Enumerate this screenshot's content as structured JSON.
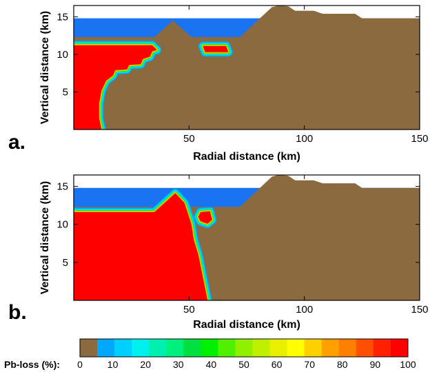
{
  "chart_data": [
    {
      "type": "heatmap",
      "panel_label": "a.",
      "xlabel": "Radial distance (km)",
      "ylabel": "Vertical distance (km)",
      "xlim": [
        0,
        150
      ],
      "ylim": [
        0,
        16.5
      ],
      "xticks": [
        50,
        100,
        150
      ],
      "yticks": [
        5,
        10,
        15
      ],
      "grid": false,
      "water": {
        "surface": 14.8,
        "color": "#1a73f0"
      },
      "rock": {
        "color": "#8b6a40",
        "profile": [
          [
            0,
            12.3
          ],
          [
            35,
            12.3
          ],
          [
            43,
            14.5
          ],
          [
            51,
            12.3
          ],
          [
            72,
            12.3
          ],
          [
            86,
            16.3
          ],
          [
            89,
            16.5
          ],
          [
            93,
            16.4
          ],
          [
            96,
            15.8
          ],
          [
            104,
            15.8
          ],
          [
            108,
            15.4
          ],
          [
            122,
            15.4
          ],
          [
            125,
            14.8
          ],
          [
            150,
            14.8
          ]
        ]
      },
      "anomalies": [
        {
          "contour": [
            [
              0,
              11.2
            ],
            [
              34,
              11.2
            ],
            [
              36,
              10.6
            ],
            [
              34,
              10.4
            ],
            [
              33,
              9.7
            ],
            [
              30,
              9.4
            ],
            [
              29,
              8.7
            ],
            [
              24,
              8.6
            ],
            [
              23,
              8.0
            ],
            [
              18,
              7.9
            ],
            [
              17,
              7.2
            ],
            [
              14,
              6.5
            ],
            [
              12,
              5.2
            ],
            [
              11,
              3.5
            ],
            [
              11,
              1.5
            ],
            [
              12,
              0
            ],
            [
              0,
              0
            ]
          ],
          "value": 100
        },
        {
          "contour": [
            [
              56,
              11.1
            ],
            [
              66,
              11.1
            ],
            [
              67,
              10.3
            ],
            [
              57,
              10.3
            ]
          ],
          "value": 100
        }
      ]
    },
    {
      "type": "heatmap",
      "panel_label": "b.",
      "xlabel": "Radial distance (km)",
      "ylabel": "Vertical distance (km)",
      "xlim": [
        0,
        150
      ],
      "ylim": [
        0,
        16.5
      ],
      "xticks": [
        50,
        100,
        150
      ],
      "yticks": [
        5,
        10,
        15
      ],
      "grid": false,
      "water": {
        "surface": 14.8,
        "color": "#1a73f0"
      },
      "rock": {
        "color": "#8b6a40",
        "profile": [
          [
            0,
            12.3
          ],
          [
            35,
            12.3
          ],
          [
            43,
            14.0
          ],
          [
            51,
            12.3
          ],
          [
            72,
            12.3
          ],
          [
            86,
            16.3
          ],
          [
            89,
            16.5
          ],
          [
            93,
            16.4
          ],
          [
            96,
            15.8
          ],
          [
            104,
            15.8
          ],
          [
            108,
            15.4
          ],
          [
            122,
            15.4
          ],
          [
            125,
            14.8
          ],
          [
            150,
            14.8
          ]
        ]
      },
      "anomalies": [
        {
          "contour": [
            [
              0,
              11.6
            ],
            [
              35,
              11.6
            ],
            [
              44,
              14.1
            ],
            [
              48,
              12.8
            ],
            [
              51,
              10.0
            ],
            [
              52,
              8.0
            ],
            [
              54,
              6.0
            ],
            [
              56,
              3.0
            ],
            [
              58,
              0
            ],
            [
              0,
              0
            ]
          ],
          "value": 100
        },
        {
          "contour": [
            [
              55,
              11.6
            ],
            [
              59,
              11.7
            ],
            [
              60,
              10.6
            ],
            [
              58,
              10.1
            ],
            [
              55,
              10.4
            ],
            [
              54,
              11.0
            ]
          ],
          "value": 100
        }
      ]
    }
  ],
  "colorbar": {
    "title": "Pb-loss (%):",
    "min": 0,
    "max": 100,
    "tick_values": [
      0,
      10,
      20,
      30,
      40,
      50,
      60,
      70,
      80,
      90,
      100
    ],
    "tick_labels": [
      "0",
      "10",
      "20",
      "30",
      "40",
      "50",
      "60",
      "70",
      "80",
      "90",
      "100"
    ],
    "colors": [
      "#8b6a40",
      "#00a8ff",
      "#00d0ff",
      "#00f0f0",
      "#00f0b0",
      "#00f080",
      "#00e040",
      "#00f000",
      "#50f000",
      "#90f000",
      "#c0f000",
      "#e8f000",
      "#ffff00",
      "#ffd000",
      "#ffa000",
      "#ff8000",
      "#ff5000",
      "#ff2000",
      "#ff0000"
    ]
  }
}
